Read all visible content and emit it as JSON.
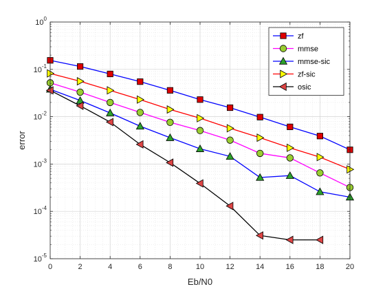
{
  "chart_data": {
    "type": "line",
    "xlabel": "Eb/N0",
    "ylabel": "error",
    "xlim": [
      0,
      20
    ],
    "ylim": [
      1e-05,
      1
    ],
    "yscale": "log",
    "grid": true,
    "minor_grid": true,
    "legend_position": "top-right",
    "x_ticks": [
      "0",
      "2",
      "4",
      "6",
      "8",
      "10",
      "12",
      "14",
      "16",
      "18",
      "20"
    ],
    "y_ticks": [
      {
        "base": "10",
        "exp": "0",
        "value": 1
      },
      {
        "base": "10",
        "exp": "-1",
        "value": 0.1
      },
      {
        "base": "10",
        "exp": "-2",
        "value": 0.01
      },
      {
        "base": "10",
        "exp": "-3",
        "value": 0.001
      },
      {
        "base": "10",
        "exp": "-4",
        "value": 0.0001
      },
      {
        "base": "10",
        "exp": "-5",
        "value": 1e-05
      }
    ],
    "series": [
      {
        "name": "zf",
        "color": "#0000ff",
        "marker": "square",
        "marker_color": "#dd0000",
        "x": [
          0,
          2,
          4,
          6,
          8,
          10,
          12,
          14,
          16,
          18,
          20
        ],
        "y": [
          0.155,
          0.115,
          0.08,
          0.055,
          0.036,
          0.023,
          0.0155,
          0.0098,
          0.0061,
          0.0039,
          0.002
        ]
      },
      {
        "name": "mmse",
        "color": "#ff00ff",
        "marker": "circle",
        "marker_color": "#9acd32",
        "x": [
          0,
          2,
          4,
          6,
          8,
          10,
          12,
          14,
          16,
          18,
          20
        ],
        "y": [
          0.052,
          0.033,
          0.02,
          0.0123,
          0.0076,
          0.0051,
          0.0032,
          0.00168,
          0.00135,
          0.00065,
          0.00032
        ]
      },
      {
        "name": "mmse-sic",
        "color": "#0000ff",
        "marker": "triangle-up",
        "marker_color": "#2ca02c",
        "x": [
          0,
          2,
          4,
          6,
          8,
          10,
          12,
          14,
          16,
          18,
          20
        ],
        "y": [
          0.038,
          0.022,
          0.012,
          0.0063,
          0.0036,
          0.0021,
          0.00145,
          0.00052,
          0.00057,
          0.00026,
          0.0002
        ]
      },
      {
        "name": "zf-sic",
        "color": "#ff0000",
        "marker": "triangle-right",
        "marker_color": "#ffff00",
        "x": [
          0,
          2,
          4,
          6,
          8,
          10,
          12,
          14,
          16,
          18,
          20
        ],
        "y": [
          0.082,
          0.056,
          0.036,
          0.023,
          0.0142,
          0.0093,
          0.0057,
          0.0036,
          0.0022,
          0.0014,
          0.00077
        ]
      },
      {
        "name": "osic",
        "color": "#000000",
        "marker": "triangle-left",
        "marker_color": "#dd4444",
        "x": [
          0,
          2,
          4,
          6,
          8,
          10,
          12,
          14,
          16,
          18
        ],
        "y": [
          0.036,
          0.017,
          0.0077,
          0.0026,
          0.00107,
          0.00039,
          0.00013,
          3.1e-05,
          2.5e-05,
          2.5e-05
        ]
      }
    ]
  }
}
